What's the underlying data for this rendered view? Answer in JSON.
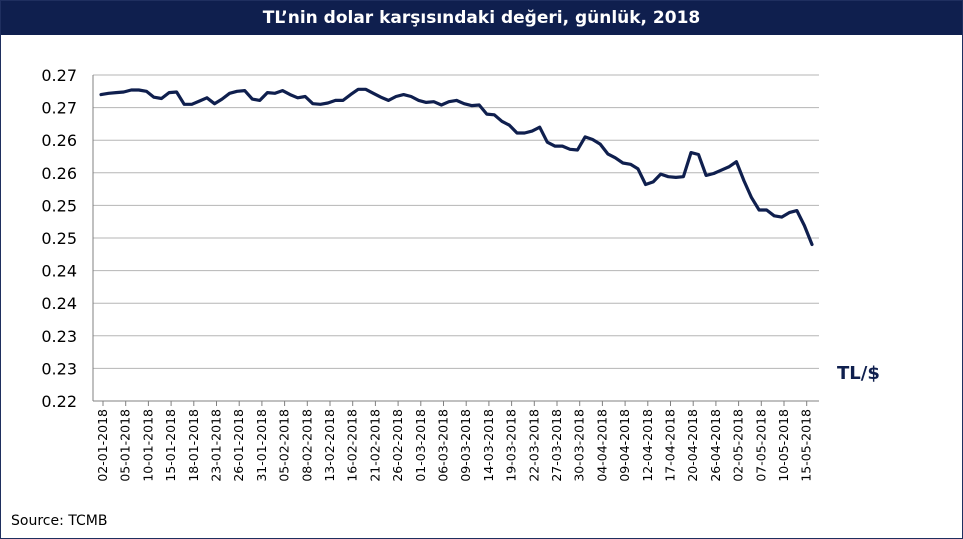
{
  "chart_data": {
    "type": "line",
    "title": "TL’nin dolar karşısındaki değeri, günlük, 2018",
    "series_label": "TL/$",
    "source": "Source: TCMB",
    "y_tick_labels": [
      "0.27",
      "0.27",
      "0.26",
      "0.26",
      "0.25",
      "0.25",
      "0.24",
      "0.24",
      "0.23",
      "0.23",
      "0.22"
    ],
    "x_tick_labels": [
      "02-01-2018",
      "05-01-2018",
      "10-01-2018",
      "15-01-2018",
      "18-01-2018",
      "23-01-2018",
      "26-01-2018",
      "31-01-2018",
      "05-02-2018",
      "08-02-2018",
      "13-02-2018",
      "16-02-2018",
      "21-02-2018",
      "26-02-2018",
      "01-03-2018",
      "06-03-2018",
      "09-03-2018",
      "14-03-2018",
      "19-03-2018",
      "22-03-2018",
      "27-03-2018",
      "30-03-2018",
      "04-04-2018",
      "09-04-2018",
      "12-04-2018",
      "17-04-2018",
      "20-04-2018",
      "26-04-2018",
      "02-05-2018",
      "07-05-2018",
      "10-05-2018",
      "15-05-2018"
    ],
    "ylim": [
      0.22,
      0.27
    ],
    "grid": true,
    "values": [
      0.267,
      0.2672,
      0.2673,
      0.2674,
      0.2677,
      0.2677,
      0.2675,
      0.2666,
      0.2664,
      0.2673,
      0.2674,
      0.2655,
      0.2655,
      0.266,
      0.2665,
      0.2656,
      0.2663,
      0.2672,
      0.2675,
      0.2676,
      0.2663,
      0.2661,
      0.2673,
      0.2672,
      0.2676,
      0.267,
      0.2665,
      0.2667,
      0.2656,
      0.2655,
      0.2657,
      0.2661,
      0.2661,
      0.267,
      0.2678,
      0.2678,
      0.2672,
      0.2666,
      0.2661,
      0.2667,
      0.267,
      0.2667,
      0.2661,
      0.2658,
      0.2659,
      0.2654,
      0.2659,
      0.2661,
      0.2656,
      0.2653,
      0.2654,
      0.264,
      0.2639,
      0.2629,
      0.2623,
      0.2611,
      0.2611,
      0.2614,
      0.262,
      0.2597,
      0.2591,
      0.2591,
      0.2586,
      0.2585,
      0.2605,
      0.2601,
      0.2594,
      0.2579,
      0.2573,
      0.2565,
      0.2563,
      0.2556,
      0.2532,
      0.2536,
      0.2548,
      0.2544,
      0.2543,
      0.2544,
      0.2581,
      0.2578,
      0.2546,
      0.2549,
      0.2554,
      0.2559,
      0.2567,
      0.2538,
      0.2512,
      0.2493,
      0.2493,
      0.2484,
      0.2482,
      0.2489,
      0.2492,
      0.2469,
      0.244
    ]
  }
}
